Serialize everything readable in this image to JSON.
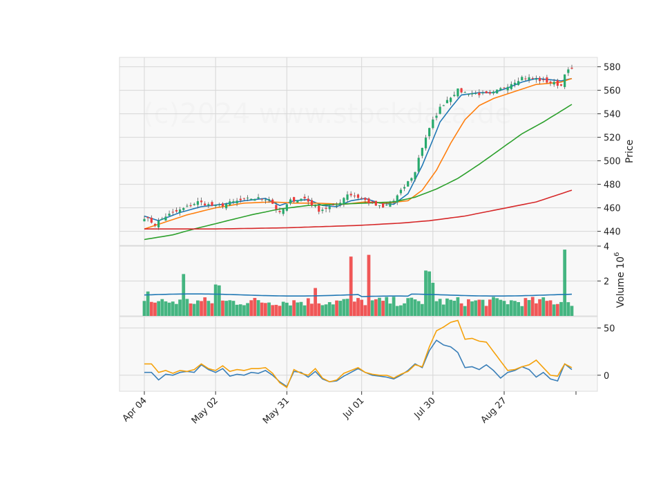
{
  "watermark": "(c)2024 www.stockdata.de",
  "colors": {
    "up": "#26a96c",
    "down": "#ef3b3b",
    "ma5": "#1f77b4",
    "ma10": "#ff7f0e",
    "ma30": "#2ca02c",
    "ma120": "#d62728",
    "volume_ma": "#1f77b4",
    "osc1": "#3a7fb8",
    "osc2": "#f5a10a",
    "panel_bg": "#f8f8f8",
    "grid": "#d6d6d6"
  },
  "chart_data": [
    {
      "type": "candlestick",
      "ylabel": "Price",
      "ylim": [
        428,
        588
      ],
      "yticks": [
        440,
        460,
        480,
        500,
        520,
        540,
        560,
        580
      ],
      "x_tick_labels": [
        "Apr 04",
        "May 02",
        "May 31",
        "Jul 01",
        "Jul 30",
        "Aug 27"
      ],
      "x_tick_index": [
        0,
        20,
        40,
        61,
        81,
        101
      ],
      "n_days": 121,
      "key_closes": [
        [
          0,
          452
        ],
        [
          3,
          446
        ],
        [
          6,
          453
        ],
        [
          10,
          458
        ],
        [
          15,
          465
        ],
        [
          20,
          461
        ],
        [
          25,
          465
        ],
        [
          30,
          468
        ],
        [
          35,
          468
        ],
        [
          38,
          455
        ],
        [
          41,
          466
        ],
        [
          45,
          468
        ],
        [
          49,
          458
        ],
        [
          54,
          462
        ],
        [
          57,
          472
        ],
        [
          61,
          468
        ],
        [
          64,
          463
        ],
        [
          67,
          460
        ],
        [
          70,
          466
        ],
        [
          73,
          478
        ],
        [
          76,
          490
        ],
        [
          77,
          503
        ],
        [
          79,
          520
        ],
        [
          81,
          534
        ],
        [
          83,
          545
        ],
        [
          85,
          552
        ],
        [
          88,
          560
        ],
        [
          90,
          558
        ],
        [
          94,
          557
        ],
        [
          97,
          556
        ],
        [
          100,
          561
        ],
        [
          103,
          566
        ],
        [
          106,
          571
        ],
        [
          109,
          570
        ],
        [
          112,
          568
        ],
        [
          115,
          566
        ],
        [
          117,
          564
        ],
        [
          118,
          575
        ],
        [
          120,
          578
        ]
      ],
      "moving_averages": [
        {
          "name": "MA5",
          "key_points": [
            [
              0,
              453
            ],
            [
              4,
              449
            ],
            [
              10,
              456
            ],
            [
              16,
              461
            ],
            [
              22,
              463
            ],
            [
              28,
              466
            ],
            [
              34,
              468
            ],
            [
              38,
              462
            ],
            [
              42,
              466
            ],
            [
              46,
              467
            ],
            [
              50,
              462
            ],
            [
              54,
              461
            ],
            [
              58,
              466
            ],
            [
              62,
              468
            ],
            [
              66,
              464
            ],
            [
              70,
              463
            ],
            [
              74,
              472
            ],
            [
              78,
              496
            ],
            [
              81,
              518
            ],
            [
              83,
              533
            ],
            [
              86,
              545
            ],
            [
              89,
              556
            ],
            [
              94,
              558
            ],
            [
              98,
              558
            ],
            [
              102,
              562
            ],
            [
              106,
              567
            ],
            [
              110,
              570
            ],
            [
              114,
              569
            ],
            [
              117,
              568
            ],
            [
              120,
              570
            ]
          ]
        },
        {
          "name": "MA10",
          "key_points": [
            [
              0,
              442
            ],
            [
              6,
              448
            ],
            [
              12,
              454
            ],
            [
              20,
              460
            ],
            [
              28,
              464
            ],
            [
              36,
              465
            ],
            [
              42,
              464
            ],
            [
              48,
              464
            ],
            [
              56,
              463
            ],
            [
              62,
              465
            ],
            [
              68,
              464
            ],
            [
              74,
              466
            ],
            [
              78,
              475
            ],
            [
              82,
              492
            ],
            [
              86,
              515
            ],
            [
              90,
              535
            ],
            [
              94,
              547
            ],
            [
              98,
              553
            ],
            [
              102,
              557
            ],
            [
              106,
              561
            ],
            [
              110,
              565
            ],
            [
              114,
              566
            ],
            [
              117,
              567
            ],
            [
              120,
              570
            ]
          ]
        },
        {
          "name": "MA30",
          "key_points": [
            [
              0,
              433
            ],
            [
              8,
              437
            ],
            [
              14,
              442
            ],
            [
              22,
              448
            ],
            [
              30,
              454
            ],
            [
              38,
              459
            ],
            [
              46,
              462
            ],
            [
              54,
              463
            ],
            [
              62,
              464
            ],
            [
              70,
              465
            ],
            [
              76,
              469
            ],
            [
              82,
              476
            ],
            [
              88,
              485
            ],
            [
              94,
              497
            ],
            [
              100,
              510
            ],
            [
              106,
              523
            ],
            [
              112,
              533
            ],
            [
              120,
              548
            ]
          ]
        },
        {
          "name": "MA120",
          "key_points": [
            [
              0,
              442
            ],
            [
              20,
              442
            ],
            [
              40,
              443
            ],
            [
              60,
              445
            ],
            [
              72,
              447
            ],
            [
              80,
              449
            ],
            [
              90,
              453
            ],
            [
              100,
              459
            ],
            [
              110,
              465
            ],
            [
              120,
              475
            ]
          ]
        }
      ]
    },
    {
      "type": "bar",
      "ylabel": "Volume  10^6",
      "ylim": [
        0,
        4
      ],
      "yticks": [
        2,
        4
      ],
      "yticks_all": [
        2,
        4
      ],
      "ytick_top_label": "4",
      "ma_level": 1.2,
      "spikes": [
        [
          1,
          1.4
        ],
        [
          11,
          2.4
        ],
        [
          20,
          1.8
        ],
        [
          21,
          1.75
        ],
        [
          48,
          1.6
        ],
        [
          58,
          3.4
        ],
        [
          63,
          3.5
        ],
        [
          79,
          2.6
        ],
        [
          80,
          2.55
        ],
        [
          81,
          1.9
        ],
        [
          118,
          3.8
        ]
      ]
    },
    {
      "type": "line",
      "ylabel": "",
      "ylim": [
        -17,
        62
      ],
      "yticks": [
        0,
        50
      ],
      "series": [
        {
          "name": "",
          "key_points": [
            [
              0,
              3
            ],
            [
              2,
              3
            ],
            [
              4,
              -5
            ],
            [
              6,
              1
            ],
            [
              8,
              0
            ],
            [
              10,
              3
            ],
            [
              12,
              4
            ],
            [
              14,
              3
            ],
            [
              16,
              11
            ],
            [
              18,
              6
            ],
            [
              20,
              3
            ],
            [
              22,
              7
            ],
            [
              24,
              -1
            ],
            [
              26,
              1
            ],
            [
              28,
              0
            ],
            [
              30,
              3
            ],
            [
              32,
              2
            ],
            [
              34,
              5
            ],
            [
              36,
              0
            ],
            [
              38,
              -7
            ],
            [
              40,
              -12
            ],
            [
              42,
              4
            ],
            [
              44,
              3
            ],
            [
              46,
              -2
            ],
            [
              48,
              4
            ],
            [
              50,
              -4
            ],
            [
              52,
              -7
            ],
            [
              54,
              -6
            ],
            [
              56,
              -1
            ],
            [
              58,
              3
            ],
            [
              60,
              7
            ],
            [
              62,
              3
            ],
            [
              64,
              0
            ],
            [
              66,
              -1
            ],
            [
              68,
              -2
            ],
            [
              70,
              -4
            ],
            [
              72,
              0
            ],
            [
              74,
              5
            ],
            [
              76,
              12
            ],
            [
              78,
              8
            ],
            [
              80,
              26
            ],
            [
              82,
              37
            ],
            [
              84,
              32
            ],
            [
              86,
              30
            ],
            [
              88,
              24
            ],
            [
              90,
              8
            ],
            [
              92,
              9
            ],
            [
              94,
              6
            ],
            [
              96,
              11
            ],
            [
              98,
              5
            ],
            [
              100,
              -3
            ],
            [
              102,
              3
            ],
            [
              104,
              5
            ],
            [
              106,
              9
            ],
            [
              108,
              6
            ],
            [
              110,
              -2
            ],
            [
              112,
              3
            ],
            [
              114,
              -4
            ],
            [
              116,
              -6
            ],
            [
              118,
              12
            ],
            [
              120,
              6
            ]
          ]
        },
        {
          "name": "",
          "key_points": [
            [
              0,
              12
            ],
            [
              2,
              12
            ],
            [
              4,
              3
            ],
            [
              6,
              5
            ],
            [
              8,
              2
            ],
            [
              10,
              5
            ],
            [
              12,
              4
            ],
            [
              14,
              6
            ],
            [
              16,
              12
            ],
            [
              18,
              7
            ],
            [
              20,
              5
            ],
            [
              22,
              10
            ],
            [
              24,
              4
            ],
            [
              26,
              6
            ],
            [
              28,
              5
            ],
            [
              30,
              7
            ],
            [
              32,
              7
            ],
            [
              34,
              8
            ],
            [
              36,
              2
            ],
            [
              38,
              -8
            ],
            [
              40,
              -13
            ],
            [
              42,
              6
            ],
            [
              44,
              2
            ],
            [
              46,
              0
            ],
            [
              48,
              7
            ],
            [
              50,
              -3
            ],
            [
              52,
              -7
            ],
            [
              54,
              -5
            ],
            [
              56,
              2
            ],
            [
              58,
              5
            ],
            [
              60,
              8
            ],
            [
              62,
              3
            ],
            [
              64,
              1
            ],
            [
              66,
              0
            ],
            [
              68,
              0
            ],
            [
              70,
              -3
            ],
            [
              72,
              1
            ],
            [
              74,
              4
            ],
            [
              76,
              11
            ],
            [
              78,
              9
            ],
            [
              80,
              30
            ],
            [
              82,
              47
            ],
            [
              84,
              51
            ],
            [
              86,
              56
            ],
            [
              88,
              58
            ],
            [
              90,
              38
            ],
            [
              92,
              39
            ],
            [
              94,
              36
            ],
            [
              96,
              35
            ],
            [
              98,
              25
            ],
            [
              100,
              15
            ],
            [
              102,
              5
            ],
            [
              104,
              6
            ],
            [
              106,
              9
            ],
            [
              108,
              11
            ],
            [
              110,
              16
            ],
            [
              112,
              8
            ],
            [
              114,
              0
            ],
            [
              116,
              -1
            ],
            [
              118,
              12
            ],
            [
              120,
              8
            ]
          ]
        }
      ]
    }
  ]
}
